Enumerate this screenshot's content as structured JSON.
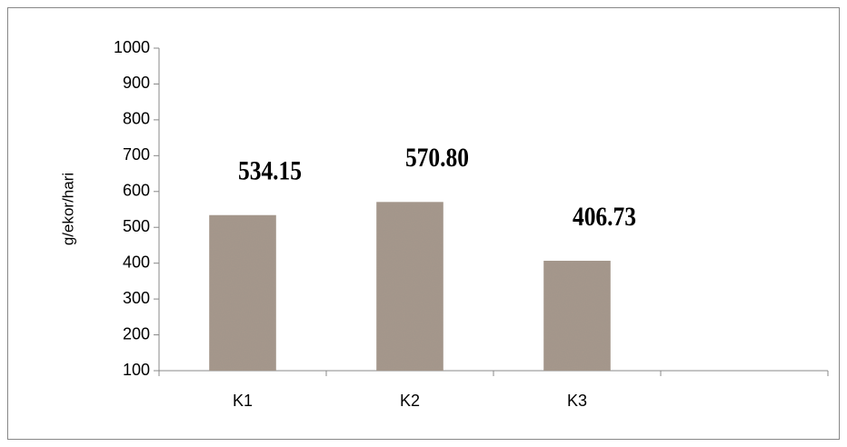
{
  "chart_data": {
    "type": "bar",
    "y_label": "g/ekor/hari",
    "categories": [
      "K1",
      "K2",
      "K3",
      null
    ],
    "values": [
      534.15,
      570.8,
      406.73,
      null
    ],
    "value_labels": [
      "534.15",
      "570.80",
      "406.73",
      null
    ],
    "color": "#a5978b",
    "ylim": [
      100,
      1000
    ],
    "yticks": [
      100,
      200,
      300,
      400,
      500,
      600,
      700,
      800,
      900,
      1000
    ],
    "grid": false
  }
}
